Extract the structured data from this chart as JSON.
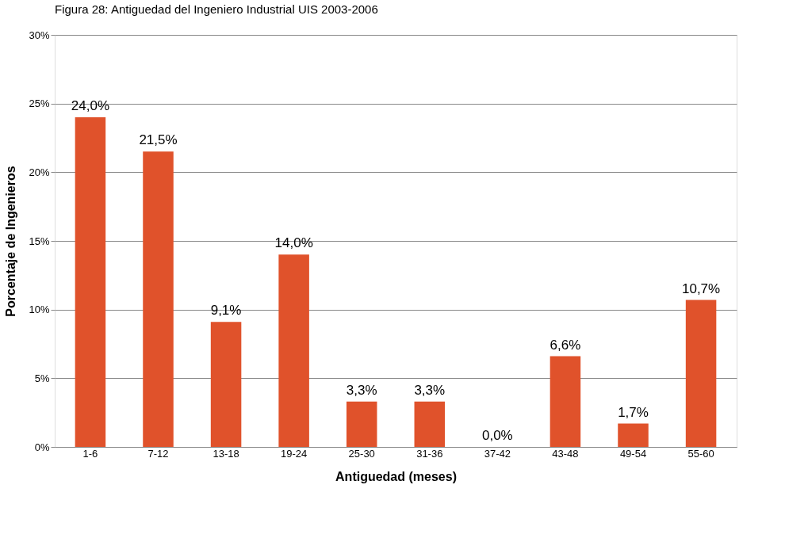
{
  "chart_data": {
    "type": "bar",
    "title": "Figura 28: Antiguedad del Ingeniero Industrial UIS 2003-2006",
    "xlabel": "Antiguedad (meses)",
    "ylabel": "Porcentaje de Ingenieros",
    "categories": [
      "1-6",
      "7-12",
      "13-18",
      "19-24",
      "25-30",
      "31-36",
      "37-42",
      "43-48",
      "49-54",
      "55-60"
    ],
    "values": [
      24.0,
      21.5,
      9.1,
      14.0,
      3.3,
      3.3,
      0.0,
      6.6,
      1.7,
      10.7
    ],
    "value_labels": [
      "24,0%",
      "21,5%",
      "9,1%",
      "14,0%",
      "3,3%",
      "3,3%",
      "0,0%",
      "6,6%",
      "1,7%",
      "10,7%"
    ],
    "color": "#e0522b",
    "ylim": [
      0,
      30
    ],
    "yticks": [
      {
        "value": 0,
        "label": "0%"
      },
      {
        "value": 5,
        "label": "5%"
      },
      {
        "value": 10,
        "label": "10%"
      },
      {
        "value": 15,
        "label": "15%"
      },
      {
        "value": 20,
        "label": "20%"
      },
      {
        "value": 25,
        "label": "25%"
      },
      {
        "value": 30,
        "label": "30%"
      }
    ],
    "grid": "y"
  }
}
